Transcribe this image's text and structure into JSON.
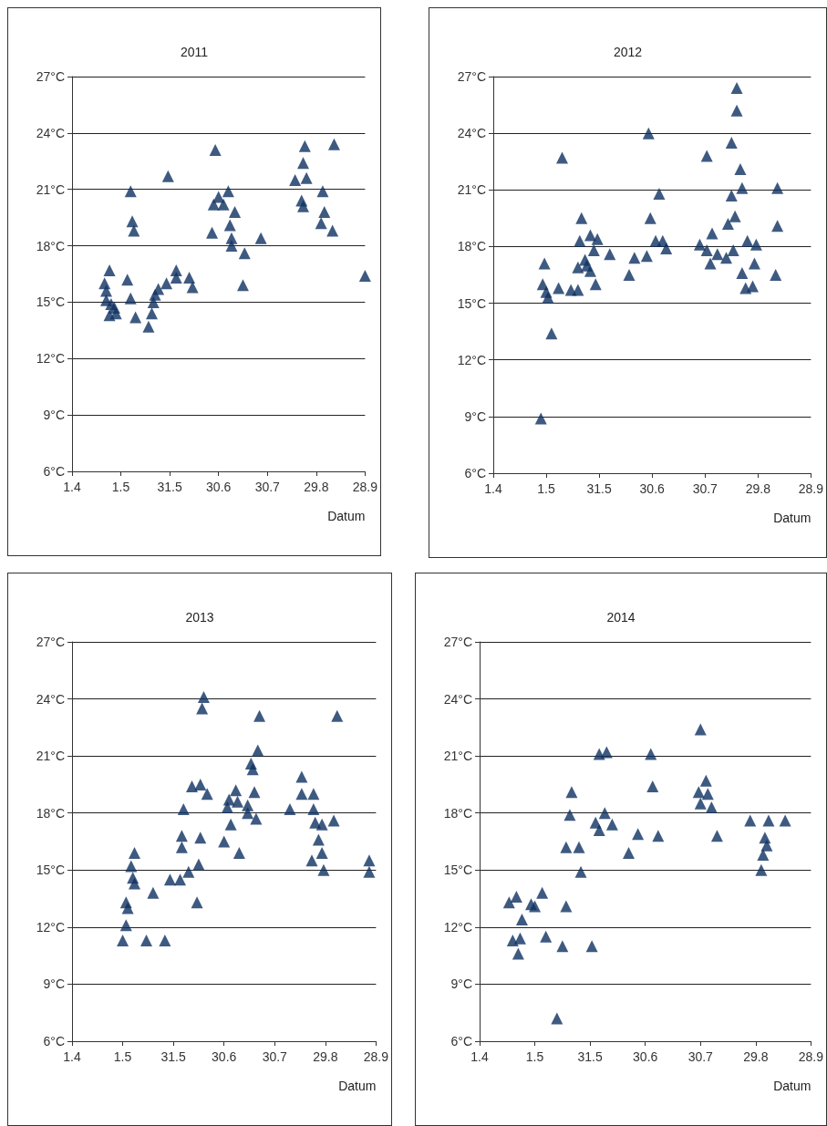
{
  "chart_data": [
    {
      "type": "scatter",
      "title": "2011",
      "xlabel": "Datum",
      "marker": "triangle",
      "grid": "y",
      "xlim": [
        "2011-04-01",
        "2011-09-28"
      ],
      "xticks": [
        {
          "value": "2011-04-01",
          "label": "1.4"
        },
        {
          "value": "2011-05-01",
          "label": "1.5"
        },
        {
          "value": "2011-05-31",
          "label": "31.5"
        },
        {
          "value": "2011-06-30",
          "label": "30.6"
        },
        {
          "value": "2011-07-30",
          "label": "30.7"
        },
        {
          "value": "2011-08-29",
          "label": "29.8"
        },
        {
          "value": "2011-09-28",
          "label": "28.9"
        }
      ],
      "ylim": [
        6,
        27
      ],
      "yticks": [
        {
          "value": 6,
          "label": "6°C"
        },
        {
          "value": 9,
          "label": "9°C"
        },
        {
          "value": 12,
          "label": "12°C"
        },
        {
          "value": 15,
          "label": "15°C"
        },
        {
          "value": 18,
          "label": "18°C"
        },
        {
          "value": 21,
          "label": "21°C"
        },
        {
          "value": 24,
          "label": "24°C"
        },
        {
          "value": 27,
          "label": "27°C"
        }
      ],
      "series": [
        {
          "color": "#0e3161",
          "x": [
            "2011-04-24",
            "2011-04-21",
            "2011-04-22",
            "2011-04-22",
            "2011-04-25",
            "2011-04-27",
            "2011-04-24",
            "2011-04-28",
            "2011-05-05",
            "2011-05-07",
            "2011-05-07",
            "2011-05-08",
            "2011-05-09",
            "2011-05-10",
            "2011-05-18",
            "2011-05-20",
            "2011-05-21",
            "2011-05-22",
            "2011-05-24",
            "2011-05-29",
            "2011-05-30",
            "2011-06-04",
            "2011-06-04",
            "2011-06-12",
            "2011-06-14",
            "2011-06-26",
            "2011-06-28",
            "2011-06-27",
            "2011-06-30",
            "2011-07-03",
            "2011-07-06",
            "2011-07-10",
            "2011-07-07",
            "2011-07-08",
            "2011-07-08",
            "2011-07-16",
            "2011-07-15",
            "2011-07-26",
            "2011-08-16",
            "2011-08-21",
            "2011-08-22",
            "2011-08-23",
            "2011-08-20",
            "2011-08-21",
            "2011-09-02",
            "2011-09-03",
            "2011-09-01",
            "2011-09-08",
            "2011-09-09",
            "2011-09-28"
          ],
          "values": [
            16.7,
            16.0,
            15.6,
            15.1,
            14.9,
            14.7,
            14.3,
            14.4,
            16.2,
            15.2,
            20.9,
            19.3,
            18.8,
            14.2,
            13.7,
            14.4,
            15.0,
            15.4,
            15.7,
            16.0,
            21.7,
            16.7,
            16.3,
            16.3,
            15.8,
            18.7,
            23.1,
            20.2,
            20.6,
            20.2,
            20.9,
            19.8,
            19.1,
            18.4,
            18.0,
            17.6,
            15.9,
            18.4,
            21.5,
            22.4,
            23.3,
            21.6,
            20.4,
            20.1,
            20.9,
            19.8,
            19.2,
            18.8,
            23.4,
            16.4
          ]
        }
      ]
    },
    {
      "type": "scatter",
      "title": "2012",
      "xlabel": "Datum",
      "marker": "triangle",
      "grid": "y",
      "xlim": [
        "2012-04-01",
        "2012-09-28"
      ],
      "xticks": [
        {
          "value": "2012-04-01",
          "label": "1.4"
        },
        {
          "value": "2012-05-01",
          "label": "1.5"
        },
        {
          "value": "2012-05-31",
          "label": "31.5"
        },
        {
          "value": "2012-06-30",
          "label": "30.6"
        },
        {
          "value": "2012-07-30",
          "label": "30.7"
        },
        {
          "value": "2012-08-29",
          "label": "29.8"
        },
        {
          "value": "2012-09-28",
          "label": "28.9"
        }
      ],
      "ylim": [
        6,
        27
      ],
      "yticks": [
        {
          "value": 6,
          "label": "6°C"
        },
        {
          "value": 9,
          "label": "9°C"
        },
        {
          "value": 12,
          "label": "12°C"
        },
        {
          "value": 15,
          "label": "15°C"
        },
        {
          "value": 18,
          "label": "18°C"
        },
        {
          "value": 21,
          "label": "21°C"
        },
        {
          "value": 24,
          "label": "24°C"
        },
        {
          "value": 27,
          "label": "27°C"
        }
      ],
      "series": [
        {
          "color": "#0e3161",
          "x": [
            "2012-04-28",
            "2012-04-30",
            "2012-04-29",
            "2012-05-01",
            "2012-05-02",
            "2012-05-04",
            "2012-05-10",
            "2012-05-08",
            "2012-05-15",
            "2012-05-19",
            "2012-05-21",
            "2012-05-20",
            "2012-05-19",
            "2012-05-23",
            "2012-05-24",
            "2012-05-26",
            "2012-05-26",
            "2012-05-28",
            "2012-05-30",
            "2012-05-29",
            "2012-06-06",
            "2012-06-17",
            "2012-06-20",
            "2012-06-27",
            "2012-06-28",
            "2012-06-29",
            "2012-07-04",
            "2012-07-02",
            "2012-07-06",
            "2012-07-08",
            "2012-07-27",
            "2012-07-31",
            "2012-07-31",
            "2012-08-02",
            "2012-08-03",
            "2012-08-06",
            "2012-08-11",
            "2012-08-12",
            "2012-08-14",
            "2012-08-14",
            "2012-08-15",
            "2012-08-16",
            "2012-08-17",
            "2012-08-17",
            "2012-08-19",
            "2012-08-20",
            "2012-08-20",
            "2012-08-22",
            "2012-08-23",
            "2012-08-26",
            "2012-08-27",
            "2012-08-28",
            "2012-09-08",
            "2012-09-09",
            "2012-09-09"
          ],
          "values": [
            8.9,
            17.1,
            16.0,
            15.6,
            15.3,
            13.4,
            22.7,
            15.8,
            15.7,
            15.7,
            19.5,
            18.3,
            16.9,
            17.3,
            17.0,
            16.7,
            18.6,
            17.8,
            18.4,
            16.0,
            17.6,
            16.5,
            17.4,
            17.5,
            24.0,
            19.5,
            20.8,
            18.3,
            18.3,
            17.9,
            18.1,
            22.8,
            17.8,
            17.1,
            18.7,
            17.6,
            17.4,
            19.2,
            20.7,
            23.5,
            17.8,
            19.6,
            25.2,
            26.4,
            22.1,
            21.1,
            16.6,
            15.8,
            18.3,
            15.9,
            17.1,
            18.1,
            16.5,
            19.1,
            21.1
          ]
        }
      ]
    },
    {
      "type": "scatter",
      "title": "2013",
      "xlabel": "Datum",
      "marker": "triangle",
      "grid": "y",
      "xlim": [
        "2013-04-01",
        "2013-09-28"
      ],
      "xticks": [
        {
          "value": "2013-04-01",
          "label": "1.4"
        },
        {
          "value": "2013-05-01",
          "label": "1.5"
        },
        {
          "value": "2013-05-31",
          "label": "31.5"
        },
        {
          "value": "2013-06-30",
          "label": "30.6"
        },
        {
          "value": "2013-07-30",
          "label": "30.7"
        },
        {
          "value": "2013-08-29",
          "label": "29.8"
        },
        {
          "value": "2013-09-28",
          "label": "28.9"
        }
      ],
      "ylim": [
        6,
        27
      ],
      "yticks": [
        {
          "value": 6,
          "label": "6°C"
        },
        {
          "value": 9,
          "label": "9°C"
        },
        {
          "value": 12,
          "label": "12°C"
        },
        {
          "value": 15,
          "label": "15°C"
        },
        {
          "value": 18,
          "label": "18°C"
        },
        {
          "value": 21,
          "label": "21°C"
        },
        {
          "value": 24,
          "label": "24°C"
        },
        {
          "value": 27,
          "label": "27°C"
        }
      ],
      "series": [
        {
          "color": "#0e3161",
          "x": [
            "2013-05-01",
            "2013-05-03",
            "2013-05-03",
            "2013-05-04",
            "2013-05-06",
            "2013-05-08",
            "2013-05-07",
            "2013-05-08",
            "2013-05-15",
            "2013-05-19",
            "2013-05-26",
            "2013-05-29",
            "2013-06-04",
            "2013-06-05",
            "2013-06-05",
            "2013-06-06",
            "2013-06-09",
            "2013-06-11",
            "2013-06-14",
            "2013-06-15",
            "2013-06-16",
            "2013-06-16",
            "2013-06-17",
            "2013-06-18",
            "2013-06-20",
            "2013-06-30",
            "2013-07-02",
            "2013-07-03",
            "2013-07-04",
            "2013-07-07",
            "2013-07-08",
            "2013-07-09",
            "2013-07-14",
            "2013-07-14",
            "2013-07-16",
            "2013-07-17",
            "2013-07-18",
            "2013-07-19",
            "2013-07-20",
            "2013-07-21",
            "2013-08-08",
            "2013-08-15",
            "2013-08-15",
            "2013-08-21",
            "2013-08-22",
            "2013-08-22",
            "2013-08-23",
            "2013-08-25",
            "2013-08-27",
            "2013-08-27",
            "2013-08-28",
            "2013-09-03",
            "2013-09-05",
            "2013-09-24",
            "2013-09-24"
          ],
          "values": [
            11.3,
            12.1,
            13.3,
            13.0,
            15.2,
            15.9,
            14.6,
            14.3,
            11.3,
            13.8,
            11.3,
            14.5,
            14.5,
            16.8,
            16.2,
            18.2,
            14.9,
            19.4,
            13.3,
            15.3,
            16.7,
            19.5,
            23.5,
            24.1,
            19.0,
            16.5,
            18.3,
            18.7,
            17.4,
            19.2,
            18.6,
            15.9,
            18.4,
            18.0,
            20.6,
            20.3,
            19.1,
            17.7,
            21.3,
            23.1,
            18.2,
            19.9,
            19.0,
            15.5,
            19.0,
            18.2,
            17.5,
            16.6,
            17.4,
            15.9,
            15.0,
            17.6,
            23.1,
            15.5,
            14.9
          ]
        }
      ]
    },
    {
      "type": "scatter",
      "title": "2014",
      "xlabel": "Datum",
      "marker": "triangle",
      "grid": "y",
      "xlim": [
        "2014-04-01",
        "2014-09-28"
      ],
      "xticks": [
        {
          "value": "2014-04-01",
          "label": "1.4"
        },
        {
          "value": "2014-05-01",
          "label": "1.5"
        },
        {
          "value": "2014-05-31",
          "label": "31.5"
        },
        {
          "value": "2014-06-30",
          "label": "30.6"
        },
        {
          "value": "2014-07-30",
          "label": "30.7"
        },
        {
          "value": "2014-08-29",
          "label": "29.8"
        },
        {
          "value": "2014-09-28",
          "label": "28.9"
        }
      ],
      "ylim": [
        6,
        27
      ],
      "yticks": [
        {
          "value": 6,
          "label": "6°C"
        },
        {
          "value": 9,
          "label": "9°C"
        },
        {
          "value": 12,
          "label": "12°C"
        },
        {
          "value": 15,
          "label": "15°C"
        },
        {
          "value": 18,
          "label": "18°C"
        },
        {
          "value": 21,
          "label": "21°C"
        },
        {
          "value": 24,
          "label": "24°C"
        },
        {
          "value": 27,
          "label": "27°C"
        }
      ],
      "series": [
        {
          "color": "#0e3161",
          "x": [
            "2014-04-17",
            "2014-04-21",
            "2014-04-19",
            "2014-04-23",
            "2014-04-22",
            "2014-04-24",
            "2014-04-29",
            "2014-05-01",
            "2014-05-05",
            "2014-05-07",
            "2014-05-13",
            "2014-05-16",
            "2014-05-18",
            "2014-05-18",
            "2014-05-20",
            "2014-05-21",
            "2014-05-25",
            "2014-05-26",
            "2014-06-01",
            "2014-06-03",
            "2014-06-05",
            "2014-06-05",
            "2014-06-09",
            "2014-06-08",
            "2014-06-12",
            "2014-06-21",
            "2014-06-26",
            "2014-07-03",
            "2014-07-04",
            "2014-07-07",
            "2014-07-30",
            "2014-07-29",
            "2014-07-30",
            "2014-08-02",
            "2014-08-03",
            "2014-08-05",
            "2014-08-08",
            "2014-08-26",
            "2014-09-01",
            "2014-09-02",
            "2014-09-03",
            "2014-09-04",
            "2014-09-05",
            "2014-09-14"
          ],
          "values": [
            13.3,
            13.6,
            11.3,
            11.4,
            10.6,
            12.4,
            13.2,
            13.1,
            13.8,
            11.5,
            7.2,
            11.0,
            13.1,
            16.2,
            17.9,
            19.1,
            16.2,
            14.9,
            11.0,
            17.5,
            17.1,
            21.1,
            21.2,
            18.0,
            17.4,
            15.9,
            16.9,
            21.1,
            19.4,
            16.8,
            22.4,
            19.1,
            18.5,
            19.7,
            19.0,
            18.3,
            16.8,
            17.6,
            15.0,
            15.8,
            16.7,
            16.3,
            17.6,
            17.6
          ]
        }
      ]
    }
  ]
}
